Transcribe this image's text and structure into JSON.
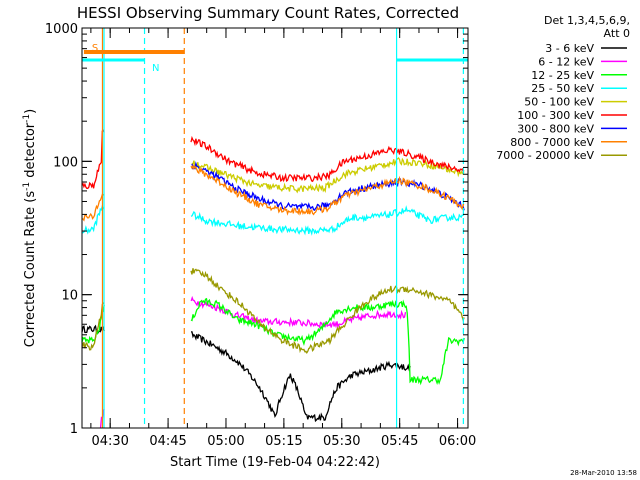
{
  "chart_data": {
    "type": "line",
    "title": "HESSI Observing Summary Count Rates, Corrected",
    "xlabel": "Start Time (19-Feb-04 04:22:42)",
    "ylabel_main": "Corrected Count Rate (s",
    "ylabel_sup1": "-1",
    "ylabel_mid": " detector",
    "ylabel_sup2": "-1",
    "ylabel_end": ")",
    "x_unit": "minutes since 04:22:42",
    "xlim": [
      0,
      100
    ],
    "ylim": [
      1,
      1000
    ],
    "y_scale": "log",
    "x_ticks": [
      {
        "value": 7.3,
        "label": "04:30"
      },
      {
        "value": 22.3,
        "label": "04:45"
      },
      {
        "value": 37.3,
        "label": "05:00"
      },
      {
        "value": 52.3,
        "label": "05:15"
      },
      {
        "value": 67.3,
        "label": "05:30"
      },
      {
        "value": 82.3,
        "label": "05:45"
      },
      {
        "value": 97.3,
        "label": "06:00"
      }
    ],
    "y_ticks": [
      {
        "value": 1,
        "label": "1"
      },
      {
        "value": 10,
        "label": "10"
      },
      {
        "value": 100,
        "label": "100"
      },
      {
        "value": 1000,
        "label": "1000"
      }
    ],
    "legend": {
      "placement": "right",
      "header_line1": "Det 1,3,4,5,6,9,",
      "header_line2": "Att 0",
      "items": [
        {
          "label": "3 - 6 keV",
          "color": "#000000"
        },
        {
          "label": "6 - 12 keV",
          "color": "#ff00ff"
        },
        {
          "label": "12 - 25 keV",
          "color": "#00ff00"
        },
        {
          "label": "25 - 50 keV",
          "color": "#00ffff"
        },
        {
          "label": "50 - 100 keV",
          "color": "#cccc00"
        },
        {
          "label": "100 - 300 keV",
          "color": "#ff0000"
        },
        {
          "label": "300 - 800 keV",
          "color": "#0000ff"
        },
        {
          "label": "800 - 7000 keV",
          "color": "#ff8000"
        },
        {
          "label": "7000 - 20000 keV",
          "color": "#999900"
        }
      ]
    },
    "flags": [
      {
        "label": "S",
        "color": "#ff8000",
        "start": 0.5,
        "end": 26.5,
        "level": 0.94,
        "thickness": 4
      },
      {
        "label": "N",
        "color": "#00ffff",
        "start": 0,
        "end": 16.2,
        "level": 0.92,
        "thickness": 3
      },
      {
        "label": "",
        "color": "#00ffff",
        "start": 81.5,
        "end": 100,
        "level": 0.92,
        "thickness": 3
      }
    ],
    "vlines": [
      {
        "x": 5.3,
        "color": "#ff8000",
        "style": "solid"
      },
      {
        "x": 5.7,
        "color": "#00ffff",
        "style": "solid"
      },
      {
        "x": 16.2,
        "color": "#00ffff",
        "style": "dashed"
      },
      {
        "x": 26.5,
        "color": "#ff8000",
        "style": "dashed"
      },
      {
        "x": 81.5,
        "color": "#00ffff",
        "style": "solid"
      },
      {
        "x": 98.8,
        "color": "#00ffff",
        "style": "dashed"
      }
    ],
    "gap": [
      5.8,
      28.2
    ],
    "series": [
      {
        "name": "3 - 6 keV",
        "color": "#000000",
        "points": [
          [
            0,
            5.5
          ],
          [
            5.3,
            5.5
          ],
          [
            28.5,
            5
          ],
          [
            35,
            4
          ],
          [
            40,
            3.2
          ],
          [
            46,
            2
          ],
          [
            50,
            1.2
          ],
          [
            54,
            2.5
          ],
          [
            58,
            1.2
          ],
          [
            63,
            1.2
          ],
          [
            66,
            2
          ],
          [
            70,
            2.5
          ],
          [
            75,
            2.7
          ],
          [
            80,
            3
          ],
          [
            85,
            2.8
          ]
        ]
      },
      {
        "name": "6 - 12 keV",
        "color": "#ff00ff",
        "points": [
          [
            4.8,
            1.05
          ],
          [
            5.5,
            1.3
          ],
          [
            28.5,
            9
          ],
          [
            35,
            8
          ],
          [
            40,
            7
          ],
          [
            46,
            6.3
          ],
          [
            55,
            6.2
          ],
          [
            62,
            6
          ],
          [
            66,
            6
          ],
          [
            70,
            6.5
          ],
          [
            75,
            7
          ],
          [
            80,
            7.2
          ],
          [
            84,
            7
          ]
        ]
      },
      {
        "name": "12 - 25 keV",
        "color": "#00ff00",
        "points": [
          [
            0,
            4.5
          ],
          [
            3,
            4.5
          ],
          [
            4.5,
            5.5
          ],
          [
            5.3,
            8
          ],
          [
            28.5,
            6.5
          ],
          [
            31,
            9
          ],
          [
            35,
            8.5
          ],
          [
            40,
            6.5
          ],
          [
            45,
            6
          ],
          [
            50,
            5
          ],
          [
            58,
            4.5
          ],
          [
            62,
            5.5
          ],
          [
            66,
            7.5
          ],
          [
            70,
            8
          ],
          [
            75,
            8
          ],
          [
            80,
            8.5
          ],
          [
            84,
            8.5
          ],
          [
            85,
            2.3
          ],
          [
            93,
            2.3
          ],
          [
            95,
            4.5
          ],
          [
            99,
            4.5
          ]
        ]
      },
      {
        "name": "25 - 50 keV",
        "color": "#00ffff",
        "points": [
          [
            0,
            30
          ],
          [
            3,
            31
          ],
          [
            5.2,
            45
          ],
          [
            28.5,
            40
          ],
          [
            32,
            36
          ],
          [
            40,
            33
          ],
          [
            50,
            31
          ],
          [
            60,
            30
          ],
          [
            65,
            31
          ],
          [
            70,
            38
          ],
          [
            75,
            38
          ],
          [
            80,
            40
          ],
          [
            84,
            43
          ],
          [
            90,
            36
          ],
          [
            95,
            38
          ],
          [
            99,
            38
          ]
        ]
      },
      {
        "name": "50 - 100 keV",
        "color": "#cccc00",
        "points": [
          [
            28.5,
            100
          ],
          [
            32,
            90
          ],
          [
            38,
            78
          ],
          [
            45,
            66
          ],
          [
            55,
            62
          ],
          [
            63,
            63
          ],
          [
            68,
            80
          ],
          [
            75,
            90
          ],
          [
            82,
            100
          ],
          [
            87,
            98
          ],
          [
            93,
            90
          ],
          [
            99,
            80
          ]
        ]
      },
      {
        "name": "100 - 300 keV",
        "color": "#ff0000",
        "points": [
          [
            0,
            65
          ],
          [
            3,
            66
          ],
          [
            5,
            100
          ],
          [
            5.3,
            175
          ],
          [
            28.5,
            145
          ],
          [
            32,
            130
          ],
          [
            38,
            100
          ],
          [
            45,
            82
          ],
          [
            52,
            75
          ],
          [
            60,
            75
          ],
          [
            64,
            78
          ],
          [
            68,
            100
          ],
          [
            74,
            110
          ],
          [
            80,
            122
          ],
          [
            84,
            115
          ],
          [
            88,
            105
          ],
          [
            94,
            92
          ],
          [
            99,
            85
          ]
        ]
      },
      {
        "name": "300 - 800 keV",
        "color": "#0000ff",
        "points": [
          [
            28.5,
            95
          ],
          [
            32,
            85
          ],
          [
            40,
            62
          ],
          [
            46,
            52
          ],
          [
            52,
            46
          ],
          [
            60,
            45
          ],
          [
            64,
            47
          ],
          [
            68,
            58
          ],
          [
            74,
            64
          ],
          [
            82,
            70
          ],
          [
            88,
            66
          ],
          [
            94,
            55
          ],
          [
            99,
            45
          ]
        ]
      },
      {
        "name": "800 - 7000 keV",
        "color": "#ff8000",
        "points": [
          [
            0,
            38
          ],
          [
            3,
            38
          ],
          [
            5.2,
            58
          ],
          [
            28.5,
            90
          ],
          [
            32,
            80
          ],
          [
            40,
            58
          ],
          [
            46,
            47
          ],
          [
            52,
            43
          ],
          [
            60,
            42
          ],
          [
            64,
            45
          ],
          [
            68,
            55
          ],
          [
            74,
            62
          ],
          [
            82,
            72
          ],
          [
            88,
            65
          ],
          [
            94,
            55
          ],
          [
            99,
            45
          ]
        ]
      },
      {
        "name": "7000 - 20000 keV",
        "color": "#999900",
        "points": [
          [
            0,
            4.2
          ],
          [
            3,
            4
          ],
          [
            5,
            7
          ],
          [
            5.3,
            9
          ],
          [
            28.5,
            15
          ],
          [
            32,
            14
          ],
          [
            36,
            11
          ],
          [
            42,
            8
          ],
          [
            46,
            6
          ],
          [
            52,
            4.5
          ],
          [
            58,
            3.8
          ],
          [
            64,
            4.5
          ],
          [
            68,
            6
          ],
          [
            74,
            9
          ],
          [
            80,
            11
          ],
          [
            85,
            11
          ],
          [
            90,
            10
          ],
          [
            95,
            9
          ],
          [
            99,
            6.5
          ]
        ]
      }
    ]
  },
  "footer": {
    "timestamp": "28-Mar-2010 13:58"
  }
}
